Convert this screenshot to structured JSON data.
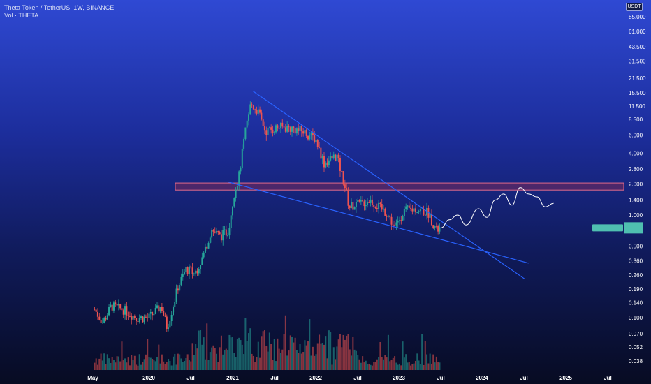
{
  "legend": {
    "symbol_line": "Theta Token / TetherUS, 1W, BINANCE",
    "volume_line": "Vol · THETA"
  },
  "price_scale": {
    "currency_tag": "USDT"
  },
  "colors": {
    "up": "#26a69a",
    "down": "#ef5350",
    "trendline": "#2962ff",
    "zone_fill": "#7a2a5a",
    "zone_border": "#e06a8a",
    "projection": "#ffffff"
  },
  "chart_data": {
    "type": "candlestick",
    "title": "Theta Token / TetherUS, 1W, BINANCE",
    "price_axis": {
      "scale": "log",
      "ticks": [
        "85.000",
        "61.000",
        "43.500",
        "31.500",
        "21.500",
        "15.500",
        "11.500",
        "8.500",
        "6.000",
        "4.000",
        "2.800",
        "2.000",
        "1.400",
        "1.000",
        "0.500",
        "0.360",
        "0.260",
        "0.190",
        "0.140",
        "0.100",
        "0.070",
        "0.052",
        "0.038"
      ]
    },
    "time_axis": {
      "ticks": [
        "May",
        "2020",
        "Jul",
        "2021",
        "Jul",
        "2022",
        "Jul",
        "2023",
        "Jul",
        "2024",
        "Jul",
        "2025",
        "Jul"
      ]
    },
    "price_path": [
      {
        "t": 2019.35,
        "p": 0.12
      },
      {
        "t": 2019.45,
        "p": 0.09
      },
      {
        "t": 2019.55,
        "p": 0.13
      },
      {
        "t": 2019.7,
        "p": 0.12
      },
      {
        "t": 2019.85,
        "p": 0.1
      },
      {
        "t": 2020.0,
        "p": 0.1
      },
      {
        "t": 2020.15,
        "p": 0.13
      },
      {
        "t": 2020.22,
        "p": 0.08
      },
      {
        "t": 2020.35,
        "p": 0.2
      },
      {
        "t": 2020.45,
        "p": 0.3
      },
      {
        "t": 2020.55,
        "p": 0.27
      },
      {
        "t": 2020.65,
        "p": 0.4
      },
      {
        "t": 2020.75,
        "p": 0.72
      },
      {
        "t": 2020.85,
        "p": 0.62
      },
      {
        "t": 2020.95,
        "p": 0.7
      },
      {
        "t": 2021.02,
        "p": 1.6
      },
      {
        "t": 2021.08,
        "p": 2.4
      },
      {
        "t": 2021.15,
        "p": 6.0
      },
      {
        "t": 2021.22,
        "p": 12.0
      },
      {
        "t": 2021.3,
        "p": 10.5
      },
      {
        "t": 2021.4,
        "p": 6.5
      },
      {
        "t": 2021.55,
        "p": 7.2
      },
      {
        "t": 2021.7,
        "p": 7.0
      },
      {
        "t": 2021.85,
        "p": 6.5
      },
      {
        "t": 2022.0,
        "p": 5.5
      },
      {
        "t": 2022.1,
        "p": 3.2
      },
      {
        "t": 2022.25,
        "p": 3.8
      },
      {
        "t": 2022.35,
        "p": 1.9
      },
      {
        "t": 2022.4,
        "p": 1.2
      },
      {
        "t": 2022.55,
        "p": 1.3
      },
      {
        "t": 2022.65,
        "p": 1.4
      },
      {
        "t": 2022.75,
        "p": 1.2
      },
      {
        "t": 2022.85,
        "p": 1.05
      },
      {
        "t": 2022.95,
        "p": 0.75
      },
      {
        "t": 2023.05,
        "p": 1.1
      },
      {
        "t": 2023.2,
        "p": 1.15
      },
      {
        "t": 2023.35,
        "p": 1.05
      },
      {
        "t": 2023.45,
        "p": 0.7
      },
      {
        "t": 2023.5,
        "p": 0.75
      }
    ],
    "projection_path": [
      {
        "t": 2023.5,
        "p": 0.75
      },
      {
        "t": 2023.6,
        "p": 0.9
      },
      {
        "t": 2023.7,
        "p": 1.0
      },
      {
        "t": 2023.8,
        "p": 0.8
      },
      {
        "t": 2023.95,
        "p": 1.15
      },
      {
        "t": 2024.05,
        "p": 0.95
      },
      {
        "t": 2024.15,
        "p": 1.4
      },
      {
        "t": 2024.25,
        "p": 1.6
      },
      {
        "t": 2024.35,
        "p": 1.25
      },
      {
        "t": 2024.45,
        "p": 1.85
      },
      {
        "t": 2024.55,
        "p": 1.6
      },
      {
        "t": 2024.65,
        "p": 1.5
      },
      {
        "t": 2024.75,
        "p": 1.2
      },
      {
        "t": 2024.85,
        "p": 1.3
      }
    ],
    "trendlines": [
      {
        "name": "upper",
        "from": {
          "t": 2021.25,
          "p": 16.0
        },
        "to": {
          "t": 2024.5,
          "p": 0.24
        }
      },
      {
        "name": "lower",
        "from": {
          "t": 2020.95,
          "p": 2.1
        },
        "to": {
          "t": 2024.55,
          "p": 0.34
        }
      }
    ],
    "zone": {
      "p_low": 1.75,
      "p_high": 2.05,
      "t_start": 2020.1,
      "t_end": 2025.7
    },
    "current_price_line": 0.75,
    "grid": false,
    "legend_position": "top-left"
  }
}
